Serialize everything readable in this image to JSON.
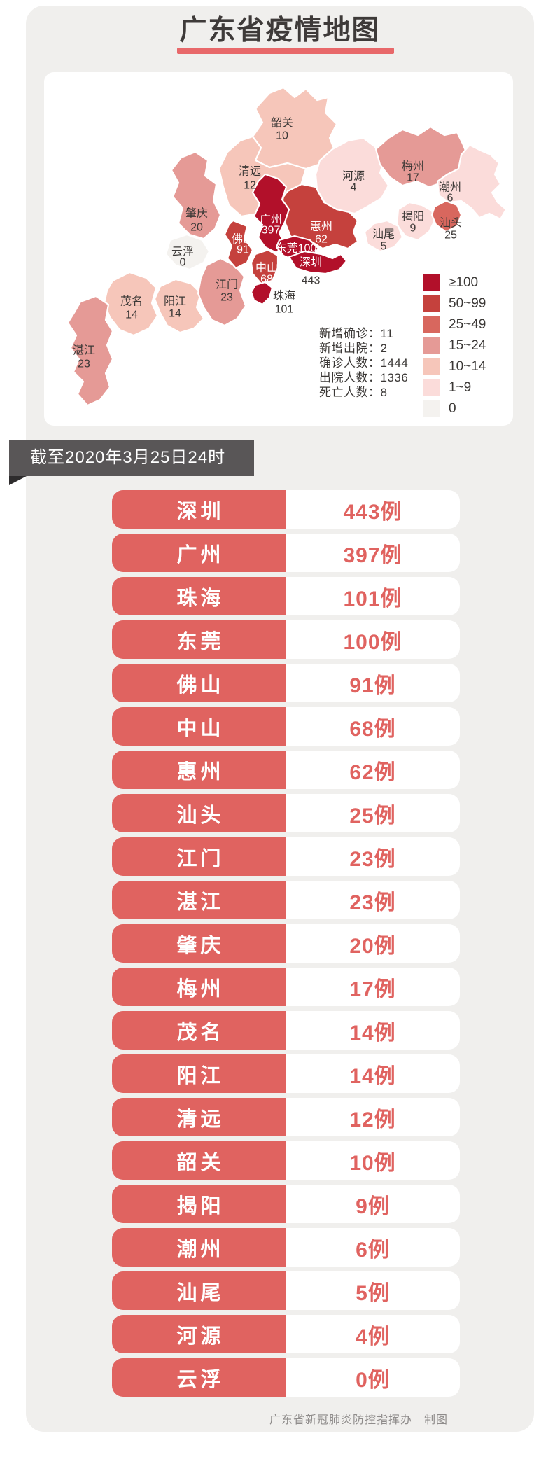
{
  "title": "广东省疫情地图",
  "date_banner": "截至2020年3月25日24时",
  "footer": "广东省新冠肺炎防控指挥办　制图",
  "case_suffix": "例",
  "stats_separator": "：",
  "colors": {
    "accent_red": "#e06360",
    "title_underline": "#e8686a",
    "ribbon": "#595657",
    "ribbon_fold": "#2e2c2d",
    "panel_bg": "#f0efed",
    "title_text": "#3e3a39"
  },
  "chart_data": {
    "type": "heatmap",
    "title": "广东省疫情地图",
    "as_of": "截至2020年3月25日24时",
    "unit": "例",
    "legend_position": "right",
    "legend": [
      {
        "label": "≥100",
        "color": "#b2102a"
      },
      {
        "label": "50~99",
        "color": "#c5413d"
      },
      {
        "label": "25~49",
        "color": "#d8675e"
      },
      {
        "label": "15~24",
        "color": "#e59a96"
      },
      {
        "label": "10~14",
        "color": "#f6c6ba"
      },
      {
        "label": "1~9",
        "color": "#fbdcda"
      },
      {
        "label": "0",
        "color": "#f4f2ef"
      }
    ],
    "summary": [
      {
        "label": "新增确诊",
        "value": "11"
      },
      {
        "label": "新增出院",
        "value": "2"
      },
      {
        "label": "确诊人数",
        "value": "1444"
      },
      {
        "label": "出院人数",
        "value": "1336"
      },
      {
        "label": "死亡人数",
        "value": "8"
      }
    ],
    "regions": [
      {
        "name": "深圳",
        "cases": 443
      },
      {
        "name": "广州",
        "cases": 397
      },
      {
        "name": "珠海",
        "cases": 101
      },
      {
        "name": "东莞",
        "cases": 100
      },
      {
        "name": "佛山",
        "cases": 91
      },
      {
        "name": "中山",
        "cases": 68
      },
      {
        "name": "惠州",
        "cases": 62
      },
      {
        "name": "汕头",
        "cases": 25
      },
      {
        "name": "江门",
        "cases": 23
      },
      {
        "name": "湛江",
        "cases": 23
      },
      {
        "name": "肇庆",
        "cases": 20
      },
      {
        "name": "梅州",
        "cases": 17
      },
      {
        "name": "茂名",
        "cases": 14
      },
      {
        "name": "阳江",
        "cases": 14
      },
      {
        "name": "清远",
        "cases": 12
      },
      {
        "name": "韶关",
        "cases": 10
      },
      {
        "name": "揭阳",
        "cases": 9
      },
      {
        "name": "潮州",
        "cases": 6
      },
      {
        "name": "汕尾",
        "cases": 5
      },
      {
        "name": "河源",
        "cases": 4
      },
      {
        "name": "云浮",
        "cases": 0
      }
    ]
  }
}
